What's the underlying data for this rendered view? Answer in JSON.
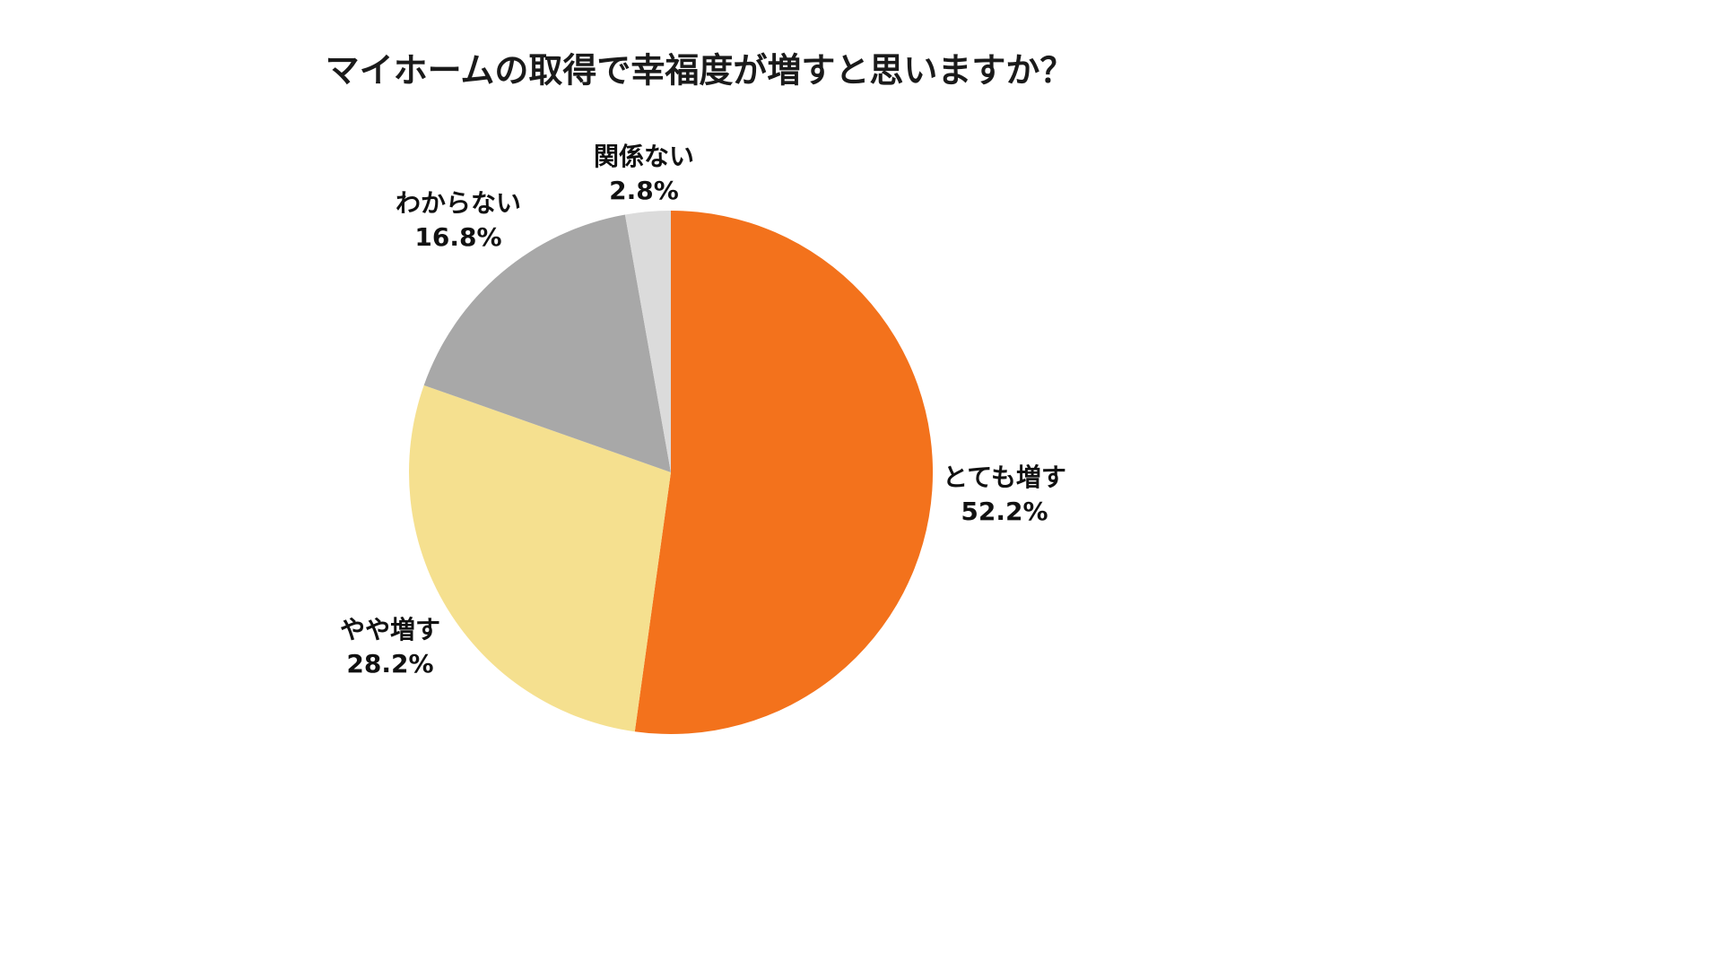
{
  "title": "マイホームの取得で幸福度が増すと思いますか？",
  "chart_data": {
    "type": "pie",
    "title": "マイホームの取得で幸福度が増すと思いますか？",
    "categories": [
      "とても増す",
      "やや増す",
      "わからない",
      "関係ない"
    ],
    "values": [
      52.2,
      28.2,
      16.8,
      2.8
    ],
    "unit": "%",
    "colors": [
      "#F3721C",
      "#F5E08F",
      "#A8A8A8",
      "#DBDBDB"
    ],
    "start_angle": "top",
    "direction": "clockwise",
    "legend_position": "none",
    "label_placement": "outside",
    "slices": [
      {
        "label": "とても増す",
        "pct_text": "52.2%"
      },
      {
        "label": "やや増す",
        "pct_text": "28.2%"
      },
      {
        "label": "わからない",
        "pct_text": "16.8%"
      },
      {
        "label": "関係ない",
        "pct_text": "2.8%"
      }
    ]
  }
}
